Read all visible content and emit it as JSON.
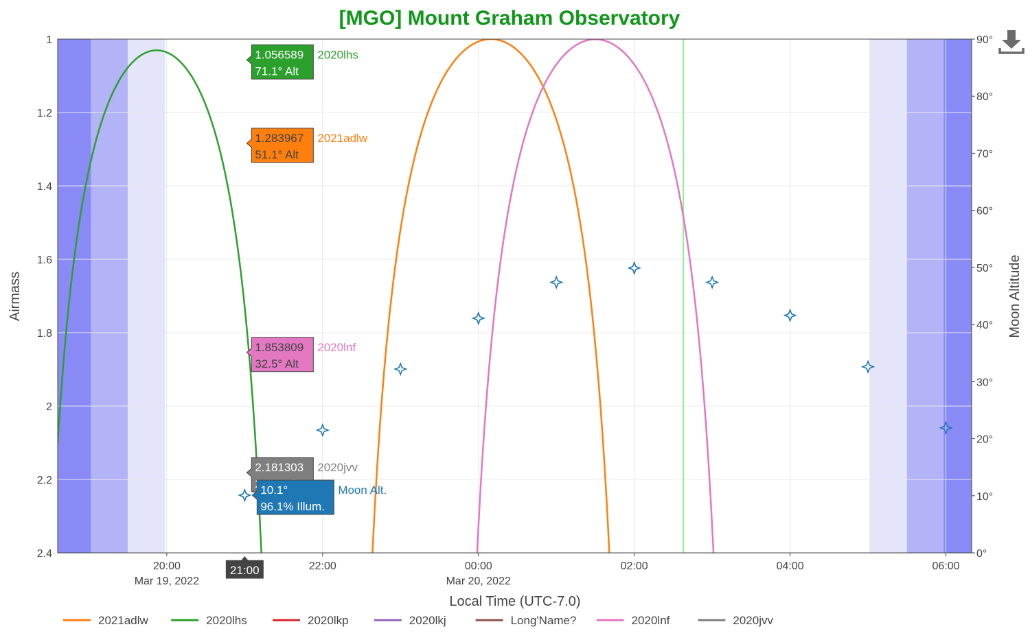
{
  "colors": {
    "background": "#ffffff",
    "title": "#109618",
    "twilight_civil": "#e4e4fb",
    "twilight_nautical": "#b3b3f7",
    "twilight_astro": "#9c9cfa",
    "twilight_night": "#8a8af7",
    "grid": "#e8e8e8",
    "moon_axis": "#9467bd",
    "moon_marker": "#1f77b4",
    "now_line": "#90ee90",
    "download_icon": "#6b6b6b"
  },
  "icons": {
    "download": "download-icon",
    "moon_marker": "four-point-star-icon"
  },
  "chart_data": {
    "type": "line",
    "title": "[MGO] Mount Graham Observatory",
    "xlabel": "Local Time (UTC-7.0)",
    "ylabel": "Airmass",
    "y2label": "Moon Altitude",
    "xrange": [
      18.6,
      30.33
    ],
    "yrange": [
      2.4,
      1.0
    ],
    "y_reversed": true,
    "y2range": [
      0,
      90
    ],
    "yticks": [
      {
        "value": 1,
        "label": "1"
      },
      {
        "value": 1.2,
        "label": "1.2"
      },
      {
        "value": 1.4,
        "label": "1.4"
      },
      {
        "value": 1.6,
        "label": "1.6"
      },
      {
        "value": 1.8,
        "label": "1.8"
      },
      {
        "value": 2,
        "label": "2"
      },
      {
        "value": 2.2,
        "label": "2.2"
      },
      {
        "value": 2.4,
        "label": "2.4"
      }
    ],
    "y2ticks": [
      {
        "value": 0,
        "label": "0°"
      },
      {
        "value": 10,
        "label": "10°"
      },
      {
        "value": 20,
        "label": "20°"
      },
      {
        "value": 30,
        "label": "30°"
      },
      {
        "value": 40,
        "label": "40°"
      },
      {
        "value": 50,
        "label": "50°"
      },
      {
        "value": 60,
        "label": "60°"
      },
      {
        "value": 70,
        "label": "70°"
      },
      {
        "value": 80,
        "label": "80°"
      },
      {
        "value": 90,
        "label": "90°"
      }
    ],
    "xticks": [
      {
        "value": 20,
        "label": "20:00",
        "sublabel": "Mar 19, 2022"
      },
      {
        "value": 22,
        "label": "22:00",
        "sublabel": ""
      },
      {
        "value": 24,
        "label": "00:00",
        "sublabel": "Mar 20, 2022"
      },
      {
        "value": 26,
        "label": "02:00",
        "sublabel": ""
      },
      {
        "value": 28,
        "label": "04:00",
        "sublabel": ""
      },
      {
        "value": 30,
        "label": "06:00",
        "sublabel": ""
      }
    ],
    "grid": true,
    "legend_position": "bottom",
    "twilight_bands": [
      {
        "start": 18.6,
        "end": 19.03,
        "level": "night"
      },
      {
        "start": 19.03,
        "end": 19.5,
        "level": "astro"
      },
      {
        "start": 19.5,
        "end": 19.98,
        "level": "civil"
      },
      {
        "start": 29.02,
        "end": 29.5,
        "level": "civil"
      },
      {
        "start": 29.5,
        "end": 29.97,
        "level": "astro"
      },
      {
        "start": 29.97,
        "end": 30.33,
        "level": "night"
      }
    ],
    "now_line_x": 26.63,
    "series": [
      {
        "name": "2021adlw",
        "color": "#ff7f0e",
        "transit": 24.16,
        "max_alt": 90
      },
      {
        "name": "2020lhs",
        "color": "#2ca02c",
        "transit": 19.87,
        "max_alt": 76
      },
      {
        "name": "2020lkp",
        "color": "#d62728",
        "transit": null,
        "max_alt": null
      },
      {
        "name": "2020lkj",
        "color": "#9467bd",
        "transit": 32.0,
        "max_alt": 90
      },
      {
        "name": "Long'Name?",
        "color": "#8c564b",
        "transit": 26.34,
        "max_alt": 37
      },
      {
        "name": "2020lnf",
        "color": "#e377c2",
        "transit": 25.5,
        "max_alt": 88
      },
      {
        "name": "2020jvv",
        "color": "#7f7f7f",
        "transit": 21.17,
        "max_alt": 27.3
      }
    ],
    "moon": {
      "name": "Moon Alt.",
      "points": [
        {
          "x": 21,
          "alt": 10.1
        },
        {
          "x": 22,
          "alt": 21.5
        },
        {
          "x": 23,
          "alt": 32.2
        },
        {
          "x": 24,
          "alt": 41.1
        },
        {
          "x": 25,
          "alt": 47.4
        },
        {
          "x": 26,
          "alt": 49.9
        },
        {
          "x": 27,
          "alt": 47.4
        },
        {
          "x": 28,
          "alt": 41.6
        },
        {
          "x": 29,
          "alt": 32.6
        },
        {
          "x": 30,
          "alt": 21.9
        }
      ]
    },
    "hover": {
      "x_label": "21:00",
      "labels": [
        {
          "series": "2020lhs",
          "value": "1.056589",
          "alt": "71.1° Alt",
          "airmass": 1.056589,
          "fill": "#2ca02c",
          "text_color": "#ffffff"
        },
        {
          "series": "2021adlw",
          "value": "1.283967",
          "alt": "51.1° Alt",
          "airmass": 1.283967,
          "fill": "#ff7f0e",
          "text_color": "#444444"
        },
        {
          "series": "2020lnf",
          "value": "1.853809",
          "alt": "32.5° Alt",
          "airmass": 1.853809,
          "fill": "#e377c2",
          "text_color": "#444444"
        },
        {
          "series": "2020jvv",
          "value": "2.181303",
          "alt": "27.1° Alt",
          "airmass": 2.181303,
          "fill": "#7f7f7f",
          "text_color": "#ffffff"
        },
        {
          "series": "Moon Alt.",
          "value": "10.1°",
          "alt": "96.1% Illum.",
          "airmass": 2.265,
          "fill": "#1f77b4",
          "text_color": "#ffffff"
        }
      ]
    }
  }
}
